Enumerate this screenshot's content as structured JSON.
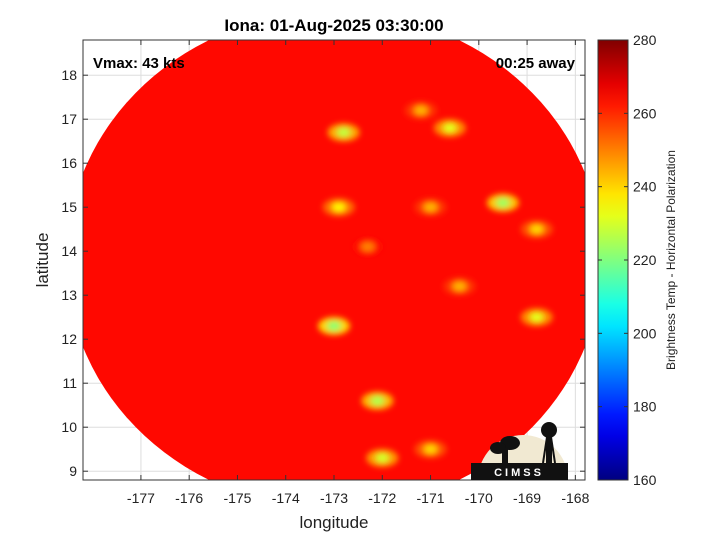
{
  "chart_data": {
    "type": "heatmap",
    "title": "Iona: 01-Aug-2025 03:30:00",
    "xlabel": "longitude",
    "ylabel": "latitude",
    "xlim": [
      -178.2,
      -167.8
    ],
    "ylim": [
      8.8,
      18.8
    ],
    "x_ticks": [
      -177,
      -176,
      -175,
      -174,
      -173,
      -172,
      -171,
      -170,
      -169,
      -168
    ],
    "y_ticks": [
      9,
      10,
      11,
      12,
      13,
      14,
      15,
      16,
      17,
      18
    ],
    "grid": true,
    "swath": {
      "center": [
        -173.0,
        13.8
      ],
      "radius_lon": 5.55,
      "radius_lat": 5.65
    },
    "background_value": 264,
    "features": [
      {
        "lon": -172.8,
        "lat": 16.7,
        "value": 228
      },
      {
        "lon": -170.6,
        "lat": 16.8,
        "value": 232
      },
      {
        "lon": -171.2,
        "lat": 17.2,
        "value": 244
      },
      {
        "lon": -169.5,
        "lat": 15.1,
        "value": 224
      },
      {
        "lon": -172.9,
        "lat": 15.0,
        "value": 236
      },
      {
        "lon": -171.0,
        "lat": 15.0,
        "value": 244
      },
      {
        "lon": -168.8,
        "lat": 14.5,
        "value": 240
      },
      {
        "lon": -173.0,
        "lat": 12.3,
        "value": 222
      },
      {
        "lon": -172.1,
        "lat": 10.6,
        "value": 226
      },
      {
        "lon": -172.0,
        "lat": 9.3,
        "value": 230
      },
      {
        "lon": -171.0,
        "lat": 9.5,
        "value": 240
      },
      {
        "lon": -168.8,
        "lat": 12.5,
        "value": 232
      },
      {
        "lon": -170.4,
        "lat": 13.2,
        "value": 244
      },
      {
        "lon": -172.3,
        "lat": 14.1,
        "value": 250
      }
    ],
    "colorbar": {
      "label": "Brightness Temp - Horizontal Polarization",
      "range": [
        160,
        280
      ],
      "ticks": [
        160,
        180,
        200,
        220,
        240,
        260,
        280
      ],
      "colormap": "jet"
    }
  },
  "annotations": {
    "vmax": "Vmax: 43 kts",
    "time_away": "00:25 away"
  },
  "logo": {
    "text": "CIMSS"
  }
}
